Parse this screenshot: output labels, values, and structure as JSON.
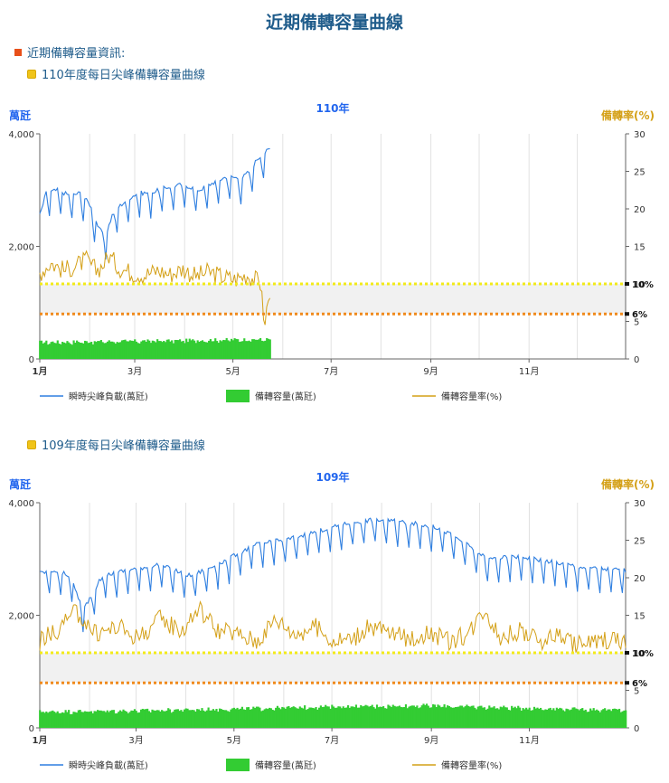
{
  "page": {
    "title": "近期備轉容量曲線",
    "info_label": "近期備轉容量資訊:",
    "section_110": "110年度每日尖峰備轉容量曲線",
    "section_109": "109年度每日尖峰備轉容量曲線"
  },
  "colors": {
    "load": "#2f7fe0",
    "capacity": "#33cc33",
    "rate": "#d4a017",
    "line10": "#f2ea1a",
    "line6": "#f08a1c",
    "band": "#f1f1f1",
    "title_blue": "#1f5c8b",
    "chart_title": "#2266ee"
  },
  "chart_data": [
    {
      "type": "line",
      "title": "110年",
      "ylabel": "萬瓩",
      "y2label": "備轉率(%)",
      "ylim": [
        0,
        4000
      ],
      "y2lim": [
        0,
        30
      ],
      "y_ticks": [
        "0",
        "2,000",
        "4,000"
      ],
      "y2_ticks": [
        "0",
        "5",
        "10",
        "15",
        "20",
        "25",
        "30"
      ],
      "x_ticks": [
        "1月",
        "3月",
        "5月",
        "7月",
        "9月",
        "11月"
      ],
      "reference_lines": [
        {
          "label": "10%",
          "value": 10
        },
        {
          "label": "6%",
          "value": 6
        }
      ],
      "legend": [
        "瞬時尖峰負載(萬瓩)",
        "備轉容量(萬瓩)",
        "備轉容量率(%)"
      ],
      "days_in_year": 365,
      "series": [
        {
          "name": "瞬時尖峰負載(萬瓩)",
          "axis": "left",
          "days": [
            1,
            5,
            12,
            20,
            26,
            32,
            38,
            42,
            46,
            50,
            56,
            62,
            70,
            80,
            90,
            100,
            110,
            118,
            126,
            132,
            136,
            140,
            144
          ],
          "values": [
            2550,
            2950,
            3000,
            2900,
            2950,
            2750,
            2300,
            2200,
            2550,
            2700,
            2850,
            2950,
            2950,
            3050,
            3100,
            3000,
            3150,
            3250,
            3200,
            3350,
            3550,
            3650,
            3730
          ]
        },
        {
          "name": "備轉容量(萬瓩)",
          "axis": "left",
          "days": [
            1,
            30,
            60,
            90,
            120,
            144
          ],
          "values": [
            300,
            310,
            320,
            330,
            345,
            350
          ]
        },
        {
          "name": "備轉容量率(%)",
          "axis": "right",
          "days": [
            1,
            8,
            16,
            24,
            30,
            36,
            40,
            44,
            50,
            58,
            66,
            74,
            82,
            90,
            98,
            106,
            114,
            122,
            130,
            136,
            139,
            140,
            142,
            144
          ],
          "values": [
            11.5,
            12.8,
            11.8,
            12.5,
            13.2,
            11.8,
            12.5,
            13.8,
            12.2,
            11.5,
            11.2,
            11.8,
            11.3,
            12.0,
            11.0,
            11.6,
            11.0,
            10.6,
            11.2,
            10.4,
            9.8,
            4.2,
            6.5,
            8.5
          ]
        }
      ]
    },
    {
      "type": "line",
      "title": "109年",
      "ylabel": "萬瓩",
      "y2label": "備轉率(%)",
      "ylim": [
        0,
        4000
      ],
      "y2lim": [
        0,
        30
      ],
      "y_ticks": [
        "0",
        "2,000",
        "4,000"
      ],
      "y2_ticks": [
        "0",
        "5",
        "10",
        "15",
        "20",
        "25",
        "30"
      ],
      "x_ticks": [
        "1月",
        "3月",
        "5月",
        "7月",
        "9月",
        "11月"
      ],
      "reference_lines": [
        {
          "label": "10%",
          "value": 10
        },
        {
          "label": "6%",
          "value": 6
        }
      ],
      "legend": [
        "瞬時尖峰負載(萬瓩)",
        "備轉容量(萬瓩)",
        "備轉容量率(%)"
      ],
      "days_in_year": 366,
      "series": [
        {
          "name": "瞬時尖峰負載(萬瓩)",
          "axis": "left",
          "days": [
            1,
            10,
            20,
            28,
            40,
            55,
            75,
            95,
            115,
            135,
            155,
            175,
            195,
            210,
            230,
            250,
            265,
            280,
            300,
            320,
            340,
            366
          ],
          "values": [
            2750,
            2800,
            2700,
            2100,
            2700,
            2800,
            2900,
            2700,
            2950,
            3250,
            3350,
            3500,
            3650,
            3700,
            3650,
            3550,
            3300,
            3000,
            3050,
            2950,
            2850,
            2800
          ]
        },
        {
          "name": "備轉容量(萬瓩)",
          "axis": "left",
          "days": [
            1,
            60,
            120,
            180,
            240,
            300,
            366
          ],
          "values": [
            290,
            310,
            340,
            380,
            400,
            360,
            320
          ]
        },
        {
          "name": "備轉容量率(%)",
          "axis": "right",
          "days": [
            1,
            12,
            24,
            36,
            50,
            62,
            76,
            90,
            100,
            112,
            124,
            136,
            148,
            160,
            172,
            184,
            196,
            208,
            220,
            232,
            244,
            256,
            268,
            278,
            288,
            300,
            312,
            324,
            336,
            348,
            358,
            366
          ],
          "values": [
            11.5,
            13.0,
            15.5,
            12.5,
            13.5,
            12.0,
            14.5,
            13.0,
            16.0,
            13.0,
            12.5,
            11.5,
            14.5,
            12.5,
            13.5,
            11.5,
            12.0,
            13.5,
            12.5,
            11.8,
            12.8,
            11.5,
            12.5,
            16.0,
            12.0,
            13.0,
            11.5,
            12.5,
            11.0,
            11.5,
            12.0,
            11.0
          ]
        }
      ]
    }
  ]
}
